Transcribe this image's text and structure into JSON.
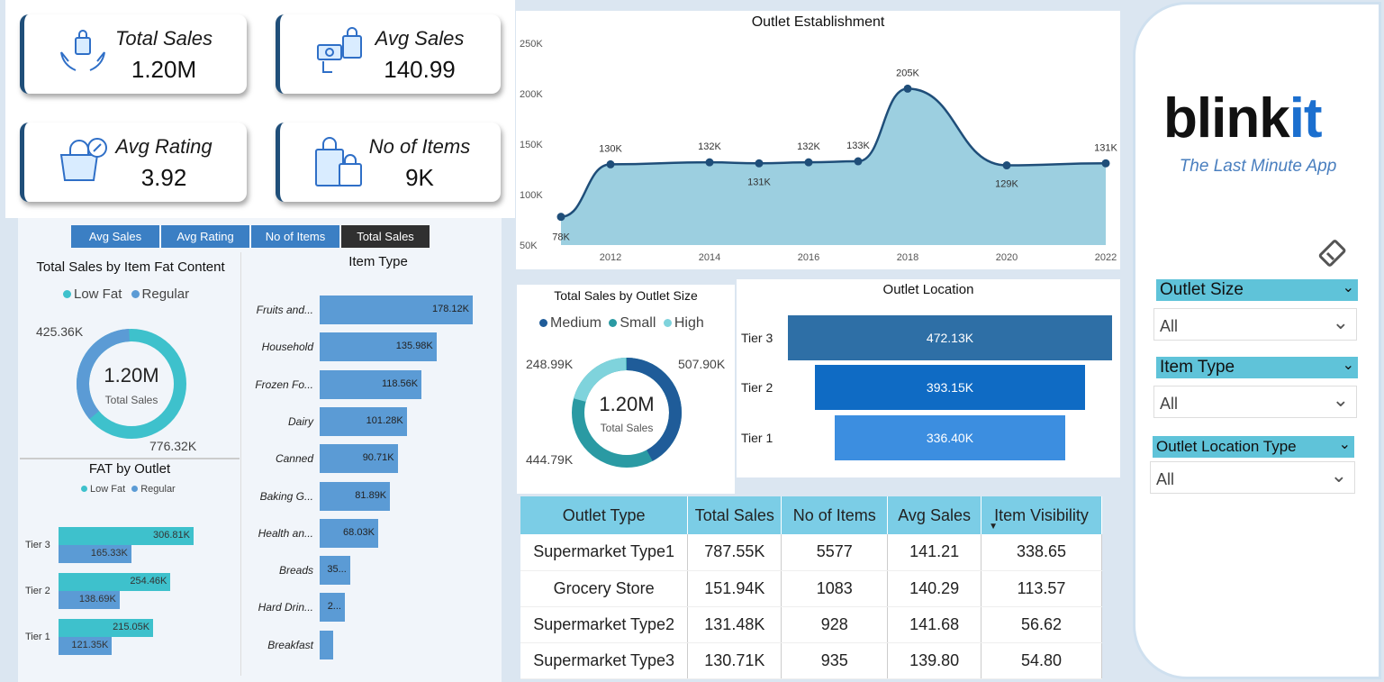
{
  "kpis": {
    "total_sales": {
      "label": "Total Sales",
      "value": "1.20M"
    },
    "avg_sales": {
      "label": "Avg Sales",
      "value": "140.99"
    },
    "avg_rating": {
      "label": "Avg Rating",
      "value": "3.92"
    },
    "no_items": {
      "label": "No of Items",
      "value": "9K"
    }
  },
  "tabs": [
    "Avg Sales",
    "Avg Rating",
    "No of Items",
    "Total Sales"
  ],
  "fat_content": {
    "title": "Total Sales by Item Fat Content",
    "legend": [
      "Low Fat",
      "Regular"
    ],
    "center_value": "1.20M",
    "center_label": "Total Sales",
    "label_regular": "425.36K",
    "label_lowfat": "776.32K"
  },
  "fat_outlet": {
    "title": "FAT by Outlet",
    "legend": [
      "Low Fat",
      "Regular"
    ]
  },
  "item_type": {
    "title": "Item Type"
  },
  "outlet_size": {
    "title": "Total Sales by Outlet Size",
    "legend": [
      "Medium",
      "Small",
      "High"
    ],
    "center_value": "1.20M",
    "center_label": "Total Sales",
    "label_high": "248.99K",
    "label_medium": "507.90K",
    "label_small": "444.79K"
  },
  "outlet_location": {
    "title": "Outlet Location"
  },
  "table": {
    "headers": [
      "Outlet Type",
      "Total Sales",
      "No of Items",
      "Avg Sales",
      "Item Visibility"
    ],
    "rows": [
      [
        "Supermarket Type1",
        "787.55K",
        "5577",
        "141.21",
        "338.65"
      ],
      [
        "Grocery Store",
        "151.94K",
        "1083",
        "140.29",
        "113.57"
      ],
      [
        "Supermarket Type2",
        "131.48K",
        "928",
        "141.68",
        "56.62"
      ],
      [
        "Supermarket Type3",
        "130.71K",
        "935",
        "139.80",
        "54.80"
      ]
    ]
  },
  "brand": {
    "name_a": "blink",
    "name_b": "it",
    "tagline": "The Last Minute App"
  },
  "slicers": [
    {
      "label": "Outlet Size",
      "value": "All"
    },
    {
      "label": "Item Type",
      "value": "All"
    },
    {
      "label": "Outlet Location Type",
      "value": "All"
    }
  ],
  "colors": {
    "accent": "#1f4e79",
    "teal": "#3ec1cc",
    "blue": "#5b9bd5",
    "header": "#7bcde6"
  },
  "chart_data": [
    {
      "type": "area",
      "title": "Outlet Establishment",
      "x": [
        2011,
        2012,
        2014,
        2015,
        2016,
        2017,
        2018,
        2020,
        2022
      ],
      "values": [
        78,
        130,
        132,
        131,
        132,
        133,
        205,
        129,
        131
      ],
      "labels": [
        "78K",
        "130K",
        "132K",
        "131K",
        "132K",
        "133K",
        "205K",
        "129K",
        "131K"
      ],
      "yticks": [
        "50K",
        "100K",
        "150K",
        "200K",
        "250K"
      ],
      "xticks": [
        "2012",
        "2014",
        "2016",
        "2018",
        "2020",
        "2022"
      ],
      "ylim": [
        50,
        250
      ]
    },
    {
      "type": "bar",
      "title": "Item Type",
      "categories": [
        "Fruits and...",
        "Household",
        "Frozen Fo...",
        "Dairy",
        "Canned",
        "Baking G...",
        "Health an...",
        "Breads",
        "Hard Drin...",
        "Breakfast"
      ],
      "values": [
        178.12,
        135.98,
        118.56,
        101.28,
        90.71,
        81.89,
        68.03,
        35.38,
        29.33,
        15.6
      ],
      "labels": [
        "178.12K",
        "135.98K",
        "118.56K",
        "101.28K",
        "90.71K",
        "81.89K",
        "68.03K",
        "35...",
        "2...",
        ""
      ]
    },
    {
      "type": "bar",
      "title": "FAT by Outlet",
      "categories": [
        "Tier 3",
        "Tier 2",
        "Tier 1"
      ],
      "series": [
        {
          "name": "Low Fat",
          "values": [
            306.81,
            254.46,
            215.05
          ],
          "labels": [
            "306.81K",
            "254.46K",
            "215.05K"
          ]
        },
        {
          "name": "Regular",
          "values": [
            165.33,
            138.69,
            121.35
          ],
          "labels": [
            "165.33K",
            "138.69K",
            "121.35K"
          ]
        }
      ]
    },
    {
      "type": "bar",
      "title": "Outlet Location",
      "categories": [
        "Tier 3",
        "Tier 2",
        "Tier 1"
      ],
      "values": [
        472.13,
        393.15,
        336.4
      ],
      "labels": [
        "472.13K",
        "393.15K",
        "336.40K"
      ]
    }
  ]
}
